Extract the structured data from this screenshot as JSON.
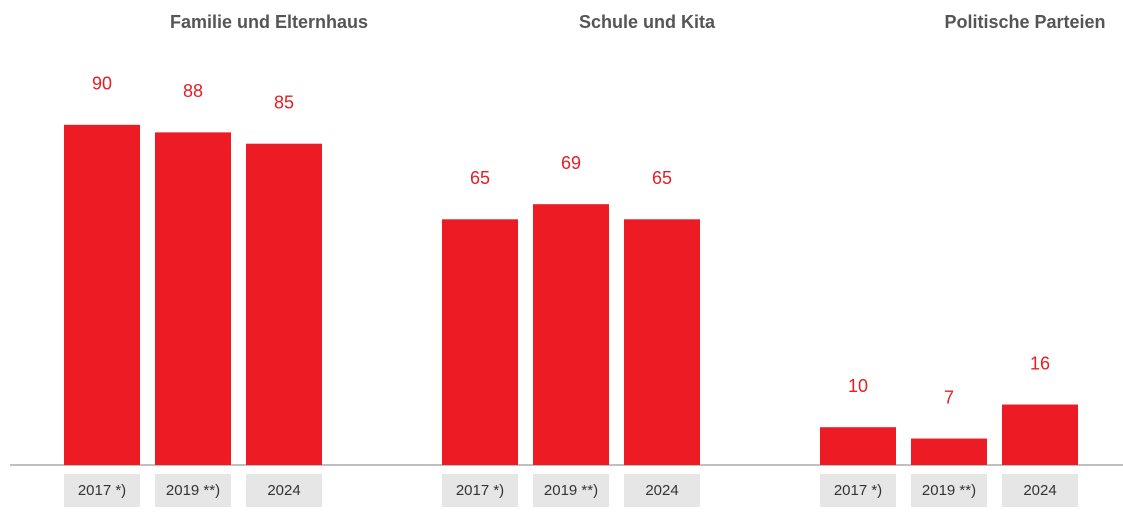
{
  "chart_data": [
    {
      "type": "bar",
      "title": "Familie und Elternhaus",
      "categories": [
        "2017 *)",
        "2019 **)",
        "2024"
      ],
      "values": [
        90,
        88,
        85
      ],
      "color": "#ed1c24"
    },
    {
      "type": "bar",
      "title": "Schule und Kita",
      "categories": [
        "2017 *)",
        "2019 **)",
        "2024"
      ],
      "values": [
        65,
        69,
        65
      ],
      "color": "#ed1c24"
    },
    {
      "type": "bar",
      "title": "Politische Parteien",
      "categories": [
        "2017 *)",
        "2019 **)",
        "2024"
      ],
      "values": [
        10,
        7,
        16
      ],
      "color": "#ed1c24"
    }
  ]
}
